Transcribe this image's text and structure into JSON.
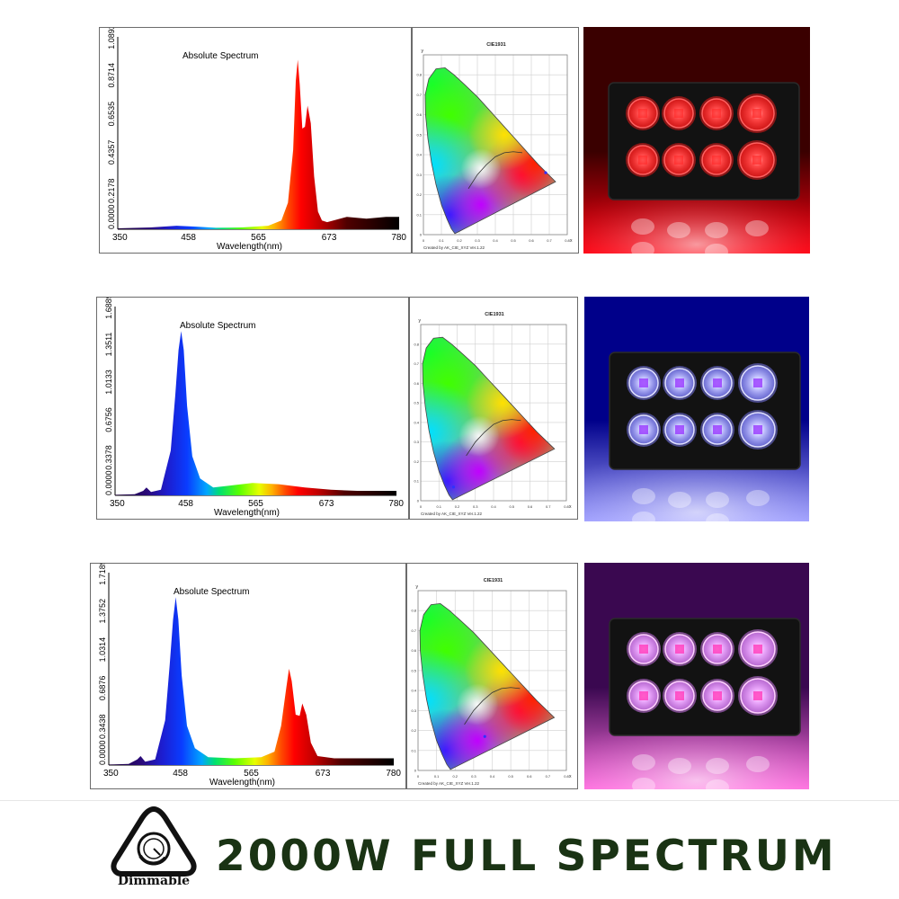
{
  "chart_data": [
    {
      "type": "line",
      "fill": "spectral-gradient",
      "title": "Absolute Spectrum",
      "xlabel": "Wavelength(nm)",
      "ylabel": "",
      "xlim": [
        350,
        780
      ],
      "xticks": [
        "350",
        "458",
        "565",
        "673",
        "780"
      ],
      "ylim": [
        0,
        1.0892
      ],
      "yticks": [
        "0.0000",
        "0.2178",
        "0.4357",
        "0.6535",
        "0.8714",
        "1.0892"
      ],
      "x": [
        350,
        400,
        440,
        470,
        500,
        540,
        580,
        600,
        610,
        618,
        622,
        625,
        628,
        632,
        636,
        640,
        645,
        650,
        656,
        662,
        670,
        700,
        730,
        760,
        780
      ],
      "values": [
        0.005,
        0.01,
        0.02,
        0.015,
        0.008,
        0.01,
        0.02,
        0.05,
        0.15,
        0.45,
        0.84,
        0.96,
        0.82,
        0.57,
        0.58,
        0.7,
        0.6,
        0.3,
        0.1,
        0.05,
        0.04,
        0.07,
        0.06,
        0.07,
        0.07
      ]
    },
    {
      "type": "line",
      "fill": "spectral-gradient",
      "title": "Absolute Spectrum",
      "xlabel": "Wavelength(nm)",
      "ylabel": "",
      "xlim": [
        350,
        780
      ],
      "xticks": [
        "350",
        "458",
        "565",
        "673",
        "780"
      ],
      "ylim": [
        0,
        1.6889
      ],
      "yticks": [
        "0.0000",
        "0.3378",
        "0.6756",
        "1.0133",
        "1.3511",
        "1.6889"
      ],
      "x": [
        350,
        380,
        393,
        398,
        405,
        420,
        435,
        442,
        447,
        451,
        455,
        460,
        468,
        480,
        500,
        530,
        560,
        600,
        640,
        680,
        720,
        760,
        780
      ],
      "values": [
        0.005,
        0.01,
        0.04,
        0.07,
        0.03,
        0.05,
        0.4,
        0.9,
        1.3,
        1.47,
        1.3,
        0.8,
        0.35,
        0.15,
        0.07,
        0.09,
        0.11,
        0.1,
        0.07,
        0.05,
        0.04,
        0.04,
        0.04
      ]
    },
    {
      "type": "line",
      "fill": "spectral-gradient",
      "title": "Absolute Spectrum",
      "xlabel": "Wavelength(nm)",
      "ylabel": "",
      "xlim": [
        350,
        780
      ],
      "xticks": [
        "350",
        "458",
        "565",
        "673",
        "780"
      ],
      "ylim": [
        0,
        1.7189
      ],
      "yticks": [
        "0.0000",
        "0.3438",
        "0.6876",
        "1.0314",
        "1.3752",
        "1.7189"
      ],
      "x": [
        350,
        380,
        393,
        398,
        405,
        420,
        435,
        442,
        447,
        451,
        455,
        460,
        468,
        480,
        500,
        540,
        580,
        600,
        610,
        618,
        622,
        626,
        632,
        638,
        642,
        648,
        655,
        665,
        690,
        730,
        780
      ],
      "values": [
        0.005,
        0.01,
        0.05,
        0.08,
        0.03,
        0.05,
        0.4,
        0.9,
        1.3,
        1.5,
        1.3,
        0.8,
        0.35,
        0.15,
        0.07,
        0.06,
        0.07,
        0.12,
        0.35,
        0.7,
        0.86,
        0.75,
        0.45,
        0.44,
        0.55,
        0.45,
        0.2,
        0.08,
        0.06,
        0.06,
        0.06
      ]
    }
  ],
  "cie": {
    "title": "CIE1931",
    "credit": "Created by AK_CIE_XYZ Ver.1.22",
    "yaxis_label": "y",
    "xaxis_label": "x",
    "ticks": [
      "0",
      "0.1",
      "0.2",
      "0.3",
      "0.4",
      "0.5",
      "0.6",
      "0.7",
      "0.8"
    ],
    "points": [
      {
        "x": 0.68,
        "y": 0.31
      },
      {
        "x": 0.18,
        "y": 0.07
      },
      {
        "x": 0.36,
        "y": 0.17
      }
    ]
  },
  "colors": {
    "red_panel": "#c8102e",
    "blue_panel": "#2626d9",
    "purple_panel": "#b140c8",
    "headline": "#1a3314"
  },
  "badge": {
    "icon": "dimmer-knob-icon",
    "label": "Dimmable"
  },
  "headline": "2000W FULL SPECTRUM"
}
